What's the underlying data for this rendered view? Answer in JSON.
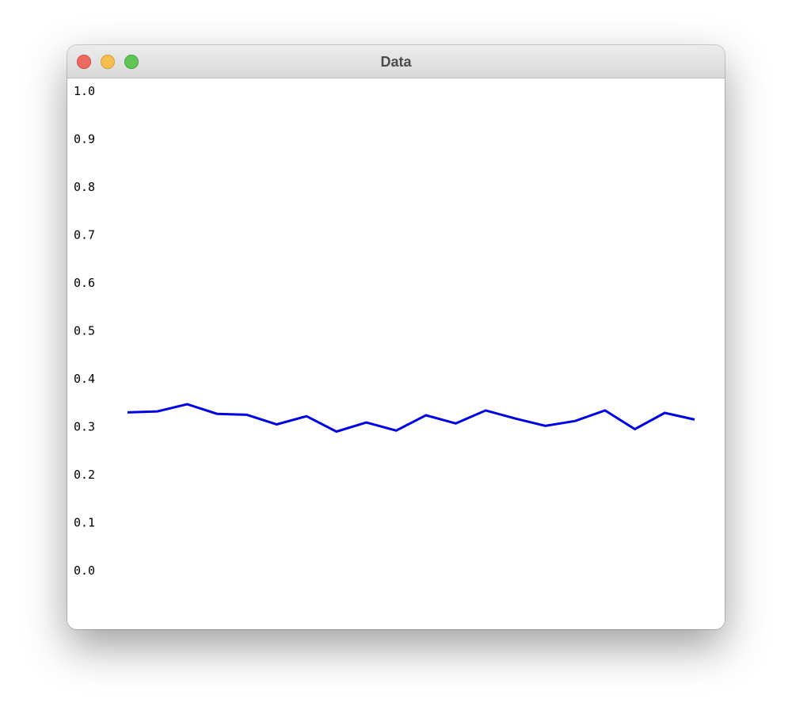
{
  "window": {
    "title": "Data",
    "controls": {
      "close_color": "#ee6a5e",
      "minimize_color": "#f5be4f",
      "zoom_color": "#61c554"
    }
  },
  "chart_data": {
    "type": "line",
    "title": "",
    "xlabel": "",
    "ylabel": "",
    "ylim": [
      0.0,
      1.0
    ],
    "y_ticks": [
      "1.0",
      "0.9",
      "0.8",
      "0.7",
      "0.6",
      "0.5",
      "0.4",
      "0.3",
      "0.2",
      "0.1",
      "0.0"
    ],
    "grid": false,
    "legend": "none",
    "series": [
      {
        "color": "#0000e6",
        "values": [
          0.33,
          0.332,
          0.347,
          0.327,
          0.325,
          0.305,
          0.322,
          0.29,
          0.309,
          0.292,
          0.324,
          0.307,
          0.334,
          0.317,
          0.302,
          0.312,
          0.334,
          0.295,
          0.329,
          0.315
        ]
      }
    ]
  }
}
